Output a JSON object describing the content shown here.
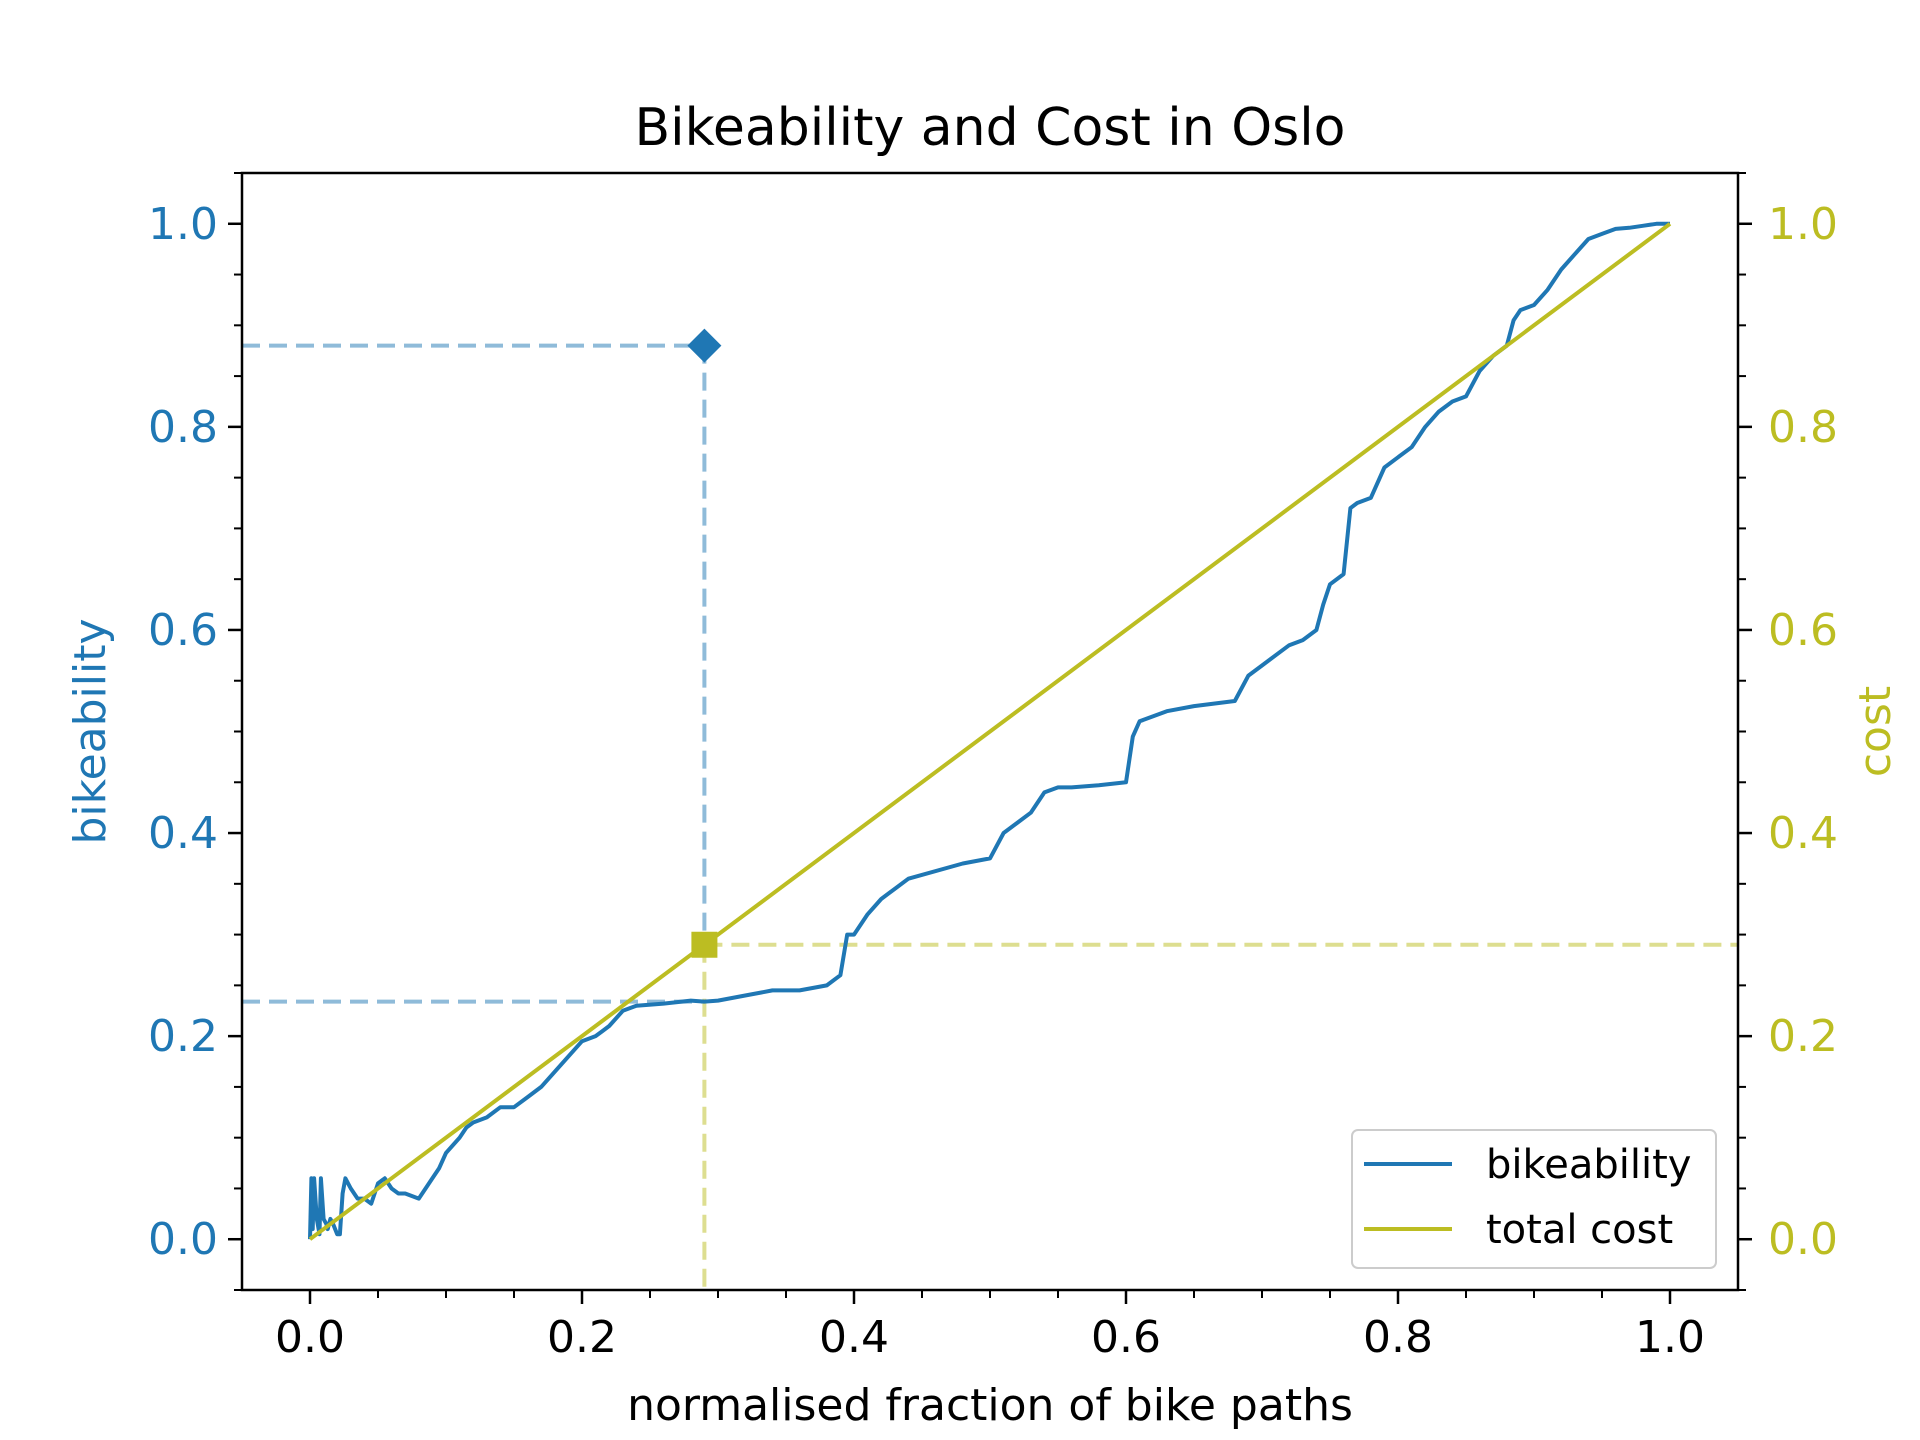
{
  "chart_data": {
    "type": "line",
    "title": "Bikeability and Cost in Oslo",
    "xlabel": "normalised fraction of bike paths",
    "ylabel_left": "bikeability",
    "ylabel_right": "cost",
    "xlim": [
      -0.05,
      1.05
    ],
    "ylim_left": [
      -0.05,
      1.05
    ],
    "ylim_right": [
      -0.05,
      1.05
    ],
    "x_ticks": [
      "0.0",
      "0.2",
      "0.4",
      "0.6",
      "0.8",
      "1.0"
    ],
    "y_ticks_left": [
      "0.0",
      "0.2",
      "0.4",
      "0.6",
      "0.8",
      "1.0"
    ],
    "y_ticks_right": [
      "0.0",
      "0.2",
      "0.4",
      "0.6",
      "0.8",
      "1.0"
    ],
    "grid": false,
    "legend_position": "lower-right",
    "colors": {
      "bikeability": "#1f77b4",
      "cost": "#bcbd22",
      "axes": "#000000"
    },
    "series": [
      {
        "name": "bikeability",
        "axis": "left",
        "x": [
          0.0,
          0.001,
          0.002,
          0.003,
          0.005,
          0.007,
          0.008,
          0.01,
          0.012,
          0.013,
          0.015,
          0.017,
          0.02,
          0.022,
          0.024,
          0.026,
          0.028,
          0.03,
          0.035,
          0.04,
          0.045,
          0.05,
          0.055,
          0.06,
          0.065,
          0.07,
          0.08,
          0.09,
          0.095,
          0.1,
          0.11,
          0.115,
          0.12,
          0.13,
          0.14,
          0.15,
          0.16,
          0.17,
          0.18,
          0.19,
          0.2,
          0.21,
          0.215,
          0.22,
          0.23,
          0.24,
          0.26,
          0.28,
          0.29,
          0.3,
          0.32,
          0.34,
          0.36,
          0.38,
          0.39,
          0.395,
          0.4,
          0.41,
          0.42,
          0.44,
          0.48,
          0.5,
          0.51,
          0.52,
          0.53,
          0.54,
          0.55,
          0.56,
          0.58,
          0.6,
          0.605,
          0.61,
          0.62,
          0.63,
          0.65,
          0.68,
          0.69,
          0.7,
          0.71,
          0.72,
          0.73,
          0.74,
          0.745,
          0.75,
          0.76,
          0.765,
          0.77,
          0.78,
          0.79,
          0.8,
          0.81,
          0.82,
          0.83,
          0.84,
          0.85,
          0.86,
          0.87,
          0.88,
          0.885,
          0.89,
          0.9,
          0.91,
          0.92,
          0.93,
          0.94,
          0.95,
          0.96,
          0.97,
          0.98,
          0.99,
          1.0
        ],
        "values": [
          0.0,
          0.06,
          0.01,
          0.06,
          0.02,
          0.005,
          0.06,
          0.02,
          0.015,
          0.01,
          0.02,
          0.015,
          0.005,
          0.005,
          0.045,
          0.06,
          0.055,
          0.05,
          0.04,
          0.04,
          0.035,
          0.055,
          0.06,
          0.05,
          0.045,
          0.045,
          0.04,
          0.06,
          0.07,
          0.085,
          0.1,
          0.11,
          0.115,
          0.12,
          0.13,
          0.13,
          0.14,
          0.15,
          0.165,
          0.18,
          0.195,
          0.2,
          0.205,
          0.21,
          0.225,
          0.23,
          0.232,
          0.235,
          0.234,
          0.235,
          0.24,
          0.245,
          0.245,
          0.25,
          0.26,
          0.3,
          0.3,
          0.32,
          0.335,
          0.355,
          0.37,
          0.375,
          0.4,
          0.41,
          0.42,
          0.44,
          0.445,
          0.445,
          0.447,
          0.45,
          0.495,
          0.51,
          0.515,
          0.52,
          0.525,
          0.53,
          0.555,
          0.565,
          0.575,
          0.585,
          0.59,
          0.6,
          0.625,
          0.645,
          0.655,
          0.72,
          0.725,
          0.73,
          0.76,
          0.77,
          0.78,
          0.8,
          0.815,
          0.825,
          0.83,
          0.855,
          0.87,
          0.88,
          0.905,
          0.915,
          0.92,
          0.935,
          0.955,
          0.97,
          0.985,
          0.99,
          0.995,
          0.996,
          0.998,
          1.0,
          1.0
        ]
      },
      {
        "name": "total cost",
        "axis": "right",
        "x": [
          0.0,
          1.0
        ],
        "values": [
          0.0,
          1.0
        ]
      }
    ],
    "markers": [
      {
        "shape": "diamond",
        "axis": "left",
        "x": 0.29,
        "y": 0.88
      },
      {
        "shape": "square",
        "axis": "right",
        "x": 0.29,
        "y": 0.29
      }
    ],
    "reference_lines": [
      {
        "kind": "hline",
        "axis": "left",
        "y": 0.88,
        "from_x": -0.05,
        "to_x": 0.29,
        "color_key": "bikeability"
      },
      {
        "kind": "vline",
        "axis": "left",
        "x": 0.29,
        "from_y": 0.88,
        "to_y": 0.29,
        "color_key": "bikeability"
      },
      {
        "kind": "hline",
        "axis": "left",
        "y": 0.234,
        "from_x": -0.05,
        "to_x": 0.29,
        "color_key": "bikeability"
      },
      {
        "kind": "vline",
        "axis": "right",
        "x": 0.29,
        "from_y": 0.29,
        "to_y": -0.05,
        "color_key": "cost"
      },
      {
        "kind": "hline",
        "axis": "right",
        "y": 0.29,
        "from_x": 0.29,
        "to_x": 1.05,
        "color_key": "cost"
      }
    ]
  }
}
